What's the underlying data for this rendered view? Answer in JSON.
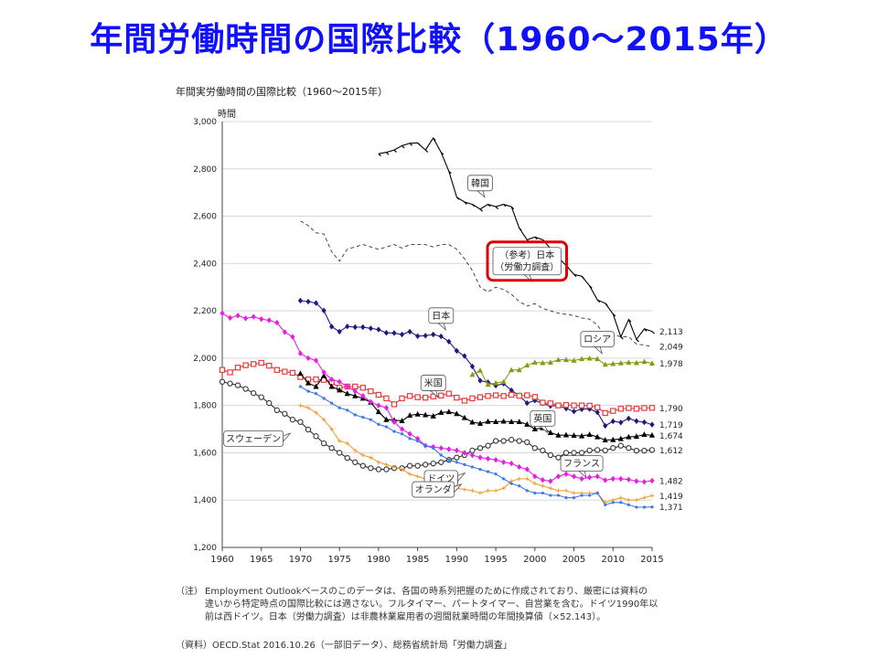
{
  "slide": {
    "title": "年間労働時間の国際比較（1960～2015年）"
  },
  "notes": {
    "label": "（注）",
    "text": "Employment Outlookベースのこのデータは、各国の時系列把握のために作成されており、厳密には資料の\n違いから特定時点の国際比較には適さない。フルタイマー、パートタイマー、自営業を含む。ドイツ1990年以\n前は西ドイツ。日本（労働力調査）は非農林業雇用者の週間就業時間の年間換算値（×52.143）。",
    "source": "（資料）OECD.Stat 2016.10.26（一部旧データ）、総務省統計局「労働力調査」"
  },
  "colors": {
    "title": "#1010ff",
    "korea": "#000000",
    "japan_lfs": "#333333",
    "japan": "#1a1a80",
    "usa": "#e83c3c",
    "russia": "#8a9a10",
    "uk": "#000000",
    "sweden": "#333333",
    "france": "#e61ee6",
    "germany": "#f0a030",
    "netherlands": "#3c78e6",
    "highlight_box": "#e00000"
  },
  "chart_data": {
    "type": "line",
    "title": "年間実労働時間の国際比較（1960～2015年）",
    "ylabel": "時間",
    "xlim": [
      1960,
      2015
    ],
    "ylim": [
      1200,
      3000
    ],
    "xticks": [
      1960,
      1965,
      1970,
      1975,
      1980,
      1985,
      1990,
      1995,
      2000,
      2005,
      2010,
      2015
    ],
    "yticks": [
      1200,
      1400,
      1600,
      1800,
      2000,
      2200,
      2400,
      2600,
      2800,
      3000
    ],
    "ytick_labels": [
      "1,200",
      "1,400",
      "1,600",
      "1,800",
      "2,000",
      "2,200",
      "2,400",
      "2,600",
      "2,800",
      "3,000"
    ],
    "grid": "horizontal",
    "series": [
      {
        "name": "韓国",
        "color": "#000000",
        "marker": "tick",
        "dash": "",
        "end_label": "2,113",
        "label_at": [
          1993,
          2740
        ],
        "label_dir": "down",
        "x": [
          1980,
          1981,
          1982,
          1983,
          1984,
          1985,
          1986,
          1987,
          1988,
          1989,
          1990,
          1991,
          1992,
          1993,
          1994,
          1995,
          1996,
          1997,
          1998,
          1999,
          2000,
          2001,
          2002,
          2003,
          2004,
          2005,
          2006,
          2007,
          2008,
          2009,
          2010,
          2011,
          2012,
          2013,
          2014,
          2015
        ],
        "y": [
          2864,
          2870,
          2880,
          2898,
          2908,
          2910,
          2880,
          2930,
          2870,
          2790,
          2680,
          2660,
          2650,
          2630,
          2650,
          2640,
          2650,
          2640,
          2550,
          2500,
          2512,
          2500,
          2464,
          2424,
          2392,
          2354,
          2346,
          2306,
          2246,
          2232,
          2187,
          2090,
          2163,
          2079,
          2124,
          2113
        ]
      },
      {
        "name": "（参考）日本（労働力調査）",
        "color": "#333333",
        "marker": "none",
        "dash": "4,3",
        "end_label": "2,049",
        "label_at": [
          1999,
          2410
        ],
        "label_dir": "down",
        "x": [
          1970,
          1971,
          1972,
          1973,
          1974,
          1975,
          1976,
          1977,
          1978,
          1979,
          1980,
          1981,
          1982,
          1983,
          1984,
          1985,
          1986,
          1987,
          1988,
          1989,
          1990,
          1991,
          1992,
          1993,
          1994,
          1995,
          1996,
          1997,
          1998,
          1999,
          2000,
          2001,
          2002,
          2003,
          2004,
          2005,
          2006,
          2007,
          2008,
          2009,
          2010,
          2011,
          2012,
          2013,
          2014,
          2015
        ],
        "y": [
          2580,
          2560,
          2530,
          2525,
          2450,
          2410,
          2460,
          2470,
          2480,
          2470,
          2460,
          2470,
          2480,
          2465,
          2480,
          2480,
          2480,
          2470,
          2480,
          2480,
          2460,
          2420,
          2370,
          2300,
          2280,
          2300,
          2290,
          2270,
          2240,
          2220,
          2230,
          2210,
          2200,
          2190,
          2185,
          2180,
          2170,
          2165,
          2140,
          2090,
          2100,
          2090,
          2090,
          2060,
          2055,
          2049
        ]
      },
      {
        "name": "日本",
        "color": "#1a1a80",
        "marker": "diamond",
        "dash": "",
        "end_label": "1,719",
        "label_at": [
          1988,
          2180
        ],
        "label_dir": "down",
        "x": [
          1970,
          1971,
          1972,
          1973,
          1974,
          1975,
          1976,
          1977,
          1978,
          1979,
          1980,
          1981,
          1982,
          1983,
          1984,
          1985,
          1986,
          1987,
          1988,
          1989,
          1990,
          1991,
          1992,
          1993,
          1994,
          1995,
          1996,
          1997,
          1998,
          1999,
          2000,
          2001,
          2002,
          2003,
          2004,
          2005,
          2006,
          2007,
          2008,
          2009,
          2010,
          2011,
          2012,
          2013,
          2014,
          2015
        ],
        "y": [
          2243,
          2239,
          2233,
          2201,
          2133,
          2112,
          2134,
          2131,
          2131,
          2126,
          2121,
          2107,
          2106,
          2100,
          2112,
          2093,
          2095,
          2100,
          2092,
          2070,
          2031,
          2009,
          1965,
          1905,
          1898,
          1884,
          1892,
          1864,
          1842,
          1810,
          1821,
          1809,
          1798,
          1799,
          1787,
          1775,
          1784,
          1785,
          1771,
          1714,
          1733,
          1728,
          1745,
          1734,
          1729,
          1719
        ]
      },
      {
        "name": "米国",
        "color": "#e83c3c",
        "marker": "square",
        "dash": "",
        "end_label": "1,790",
        "label_at": [
          1987,
          1895
        ],
        "label_dir": "down",
        "x": [
          1960,
          1961,
          1962,
          1963,
          1964,
          1965,
          1966,
          1967,
          1968,
          1969,
          1970,
          1971,
          1972,
          1973,
          1974,
          1975,
          1976,
          1977,
          1978,
          1979,
          1980,
          1981,
          1982,
          1983,
          1984,
          1985,
          1986,
          1987,
          1988,
          1989,
          1990,
          1991,
          1992,
          1993,
          1994,
          1995,
          1996,
          1997,
          1998,
          1999,
          2000,
          2001,
          2002,
          2003,
          2004,
          2005,
          2006,
          2007,
          2008,
          2009,
          2010,
          2011,
          2012,
          2013,
          2014,
          2015
        ],
        "y": [
          1950,
          1940,
          1960,
          1970,
          1975,
          1980,
          1968,
          1950,
          1943,
          1938,
          1920,
          1910,
          1910,
          1908,
          1898,
          1875,
          1880,
          1880,
          1875,
          1860,
          1845,
          1830,
          1805,
          1830,
          1840,
          1835,
          1833,
          1838,
          1842,
          1850,
          1833,
          1820,
          1830,
          1835,
          1840,
          1843,
          1840,
          1845,
          1841,
          1843,
          1836,
          1812,
          1809,
          1800,
          1802,
          1800,
          1800,
          1799,
          1792,
          1768,
          1777,
          1786,
          1789,
          1786,
          1789,
          1790
        ]
      },
      {
        "name": "ロシア",
        "color": "#8a9a10",
        "marker": "triangle",
        "dash": "",
        "end_label": "1,978",
        "label_at": [
          2008,
          2080
        ],
        "label_dir": "down",
        "x": [
          1992,
          1993,
          1994,
          1995,
          1996,
          1997,
          1998,
          1999,
          2000,
          2001,
          2002,
          2003,
          2004,
          2005,
          2006,
          2007,
          2008,
          2009,
          2010,
          2011,
          2012,
          2013,
          2014,
          2015
        ],
        "y": [
          1930,
          1948,
          1888,
          1895,
          1900,
          1950,
          1950,
          1970,
          1982,
          1980,
          1982,
          1993,
          1993,
          1990,
          1997,
          1999,
          1997,
          1973,
          1976,
          1979,
          1982,
          1980,
          1985,
          1978
        ]
      },
      {
        "name": "英国",
        "color": "#000000",
        "marker": "triangle-filled",
        "dash": "",
        "end_label": "1,674",
        "label_at": [
          2001,
          1745
        ],
        "label_dir": "down",
        "x": [
          1970,
          1971,
          1972,
          1973,
          1974,
          1975,
          1976,
          1977,
          1978,
          1979,
          1980,
          1981,
          1982,
          1983,
          1984,
          1985,
          1986,
          1987,
          1988,
          1989,
          1990,
          1991,
          1992,
          1993,
          1994,
          1995,
          1996,
          1997,
          1998,
          1999,
          2000,
          2001,
          2002,
          2003,
          2004,
          2005,
          2006,
          2007,
          2008,
          2009,
          2010,
          2011,
          2012,
          2013,
          2014,
          2015
        ],
        "y": [
          1935,
          1895,
          1880,
          1925,
          1880,
          1865,
          1850,
          1840,
          1830,
          1813,
          1773,
          1740,
          1738,
          1735,
          1758,
          1763,
          1760,
          1755,
          1770,
          1773,
          1765,
          1748,
          1729,
          1724,
          1732,
          1731,
          1733,
          1731,
          1731,
          1720,
          1700,
          1705,
          1685,
          1674,
          1675,
          1673,
          1671,
          1677,
          1667,
          1654,
          1655,
          1659,
          1667,
          1669,
          1677,
          1674
        ]
      },
      {
        "name": "スウェーデン",
        "color": "#333333",
        "marker": "circle",
        "dash": "",
        "end_label": "1,612",
        "label_at": [
          1964,
          1660
        ],
        "label_dir": "right",
        "x": [
          1960,
          1961,
          1962,
          1963,
          1964,
          1965,
          1966,
          1967,
          1968,
          1969,
          1970,
          1971,
          1972,
          1973,
          1974,
          1975,
          1976,
          1977,
          1978,
          1979,
          1980,
          1981,
          1982,
          1983,
          1984,
          1985,
          1986,
          1987,
          1988,
          1989,
          1990,
          1991,
          1992,
          1993,
          1994,
          1995,
          1996,
          1997,
          1998,
          1999,
          2000,
          2001,
          2002,
          2003,
          2004,
          2005,
          2006,
          2007,
          2008,
          2009,
          2010,
          2011,
          2012,
          2013,
          2014,
          2015
        ],
        "y": [
          1900,
          1893,
          1885,
          1870,
          1852,
          1835,
          1810,
          1780,
          1765,
          1740,
          1730,
          1698,
          1670,
          1640,
          1620,
          1600,
          1578,
          1560,
          1545,
          1535,
          1530,
          1530,
          1535,
          1535,
          1545,
          1545,
          1550,
          1555,
          1560,
          1570,
          1580,
          1590,
          1610,
          1620,
          1630,
          1650,
          1650,
          1655,
          1650,
          1645,
          1620,
          1610,
          1590,
          1580,
          1600,
          1600,
          1600,
          1610,
          1612,
          1610,
          1620,
          1630,
          1620,
          1609,
          1609,
          1612
        ]
      },
      {
        "name": "フランス",
        "color": "#e61ee6",
        "marker": "diamond",
        "dash": "",
        "end_label": "1,482",
        "label_at": [
          2006,
          1555
        ],
        "label_dir": "down",
        "x": [
          1960,
          1961,
          1962,
          1963,
          1964,
          1965,
          1966,
          1967,
          1968,
          1969,
          1970,
          1971,
          1972,
          1973,
          1974,
          1975,
          1976,
          1977,
          1978,
          1979,
          1980,
          1981,
          1982,
          1983,
          1984,
          1985,
          1986,
          1987,
          1988,
          1989,
          1990,
          1991,
          1992,
          1993,
          1994,
          1995,
          1996,
          1997,
          1998,
          1999,
          2000,
          2001,
          2002,
          2003,
          2004,
          2005,
          2006,
          2007,
          2008,
          2009,
          2010,
          2011,
          2012,
          2013,
          2014,
          2015
        ],
        "y": [
          2190,
          2170,
          2180,
          2168,
          2175,
          2165,
          2160,
          2150,
          2110,
          2090,
          2020,
          2000,
          1990,
          1940,
          1910,
          1900,
          1880,
          1860,
          1840,
          1815,
          1800,
          1790,
          1730,
          1700,
          1680,
          1660,
          1630,
          1625,
          1620,
          1615,
          1610,
          1600,
          1590,
          1580,
          1575,
          1570,
          1560,
          1555,
          1540,
          1530,
          1500,
          1485,
          1480,
          1500,
          1510,
          1500,
          1490,
          1496,
          1500,
          1484,
          1490,
          1490,
          1487,
          1480,
          1477,
          1482
        ]
      },
      {
        "name": "ドイツ",
        "color": "#f0a030",
        "marker": "plus",
        "dash": "",
        "end_label": "1,419",
        "label_at": [
          1988,
          1492
        ],
        "label_dir": "right",
        "x": [
          1970,
          1971,
          1972,
          1973,
          1974,
          1975,
          1976,
          1977,
          1978,
          1979,
          1980,
          1981,
          1982,
          1983,
          1984,
          1985,
          1986,
          1987,
          1988,
          1989,
          1990,
          1991,
          1992,
          1993,
          1994,
          1995,
          1996,
          1997,
          1998,
          1999,
          2000,
          2001,
          2002,
          2003,
          2004,
          2005,
          2006,
          2007,
          2008,
          2009,
          2010,
          2011,
          2012,
          2013,
          2014,
          2015
        ],
        "y": [
          1800,
          1790,
          1770,
          1740,
          1700,
          1650,
          1640,
          1610,
          1590,
          1580,
          1560,
          1550,
          1540,
          1530,
          1510,
          1500,
          1490,
          1475,
          1465,
          1455,
          1450,
          1445,
          1440,
          1430,
          1440,
          1440,
          1450,
          1480,
          1490,
          1490,
          1470,
          1460,
          1450,
          1440,
          1440,
          1430,
          1430,
          1430,
          1430,
          1390,
          1400,
          1410,
          1400,
          1400,
          1410,
          1419
        ]
      },
      {
        "name": "オランダ",
        "color": "#3c78e6",
        "marker": "dot",
        "dash": "",
        "end_label": "1,371",
        "label_at": [
          1987,
          1445
        ],
        "label_dir": "right",
        "x": [
          1970,
          1971,
          1972,
          1973,
          1974,
          1975,
          1976,
          1977,
          1978,
          1979,
          1980,
          1981,
          1982,
          1983,
          1984,
          1985,
          1986,
          1987,
          1988,
          1989,
          1990,
          1991,
          1992,
          1993,
          1994,
          1995,
          1996,
          1997,
          1998,
          1999,
          2000,
          2001,
          2002,
          2003,
          2004,
          2005,
          2006,
          2007,
          2008,
          2009,
          2010,
          2011,
          2012,
          2013,
          2014,
          2015
        ],
        "y": [
          1880,
          1860,
          1850,
          1830,
          1810,
          1790,
          1780,
          1760,
          1750,
          1740,
          1720,
          1710,
          1690,
          1680,
          1660,
          1650,
          1630,
          1620,
          1590,
          1570,
          1560,
          1550,
          1540,
          1530,
          1520,
          1510,
          1490,
          1470,
          1460,
          1440,
          1430,
          1430,
          1420,
          1420,
          1410,
          1410,
          1420,
          1420,
          1430,
          1380,
          1390,
          1390,
          1380,
          1370,
          1370,
          1371
        ]
      }
    ]
  }
}
